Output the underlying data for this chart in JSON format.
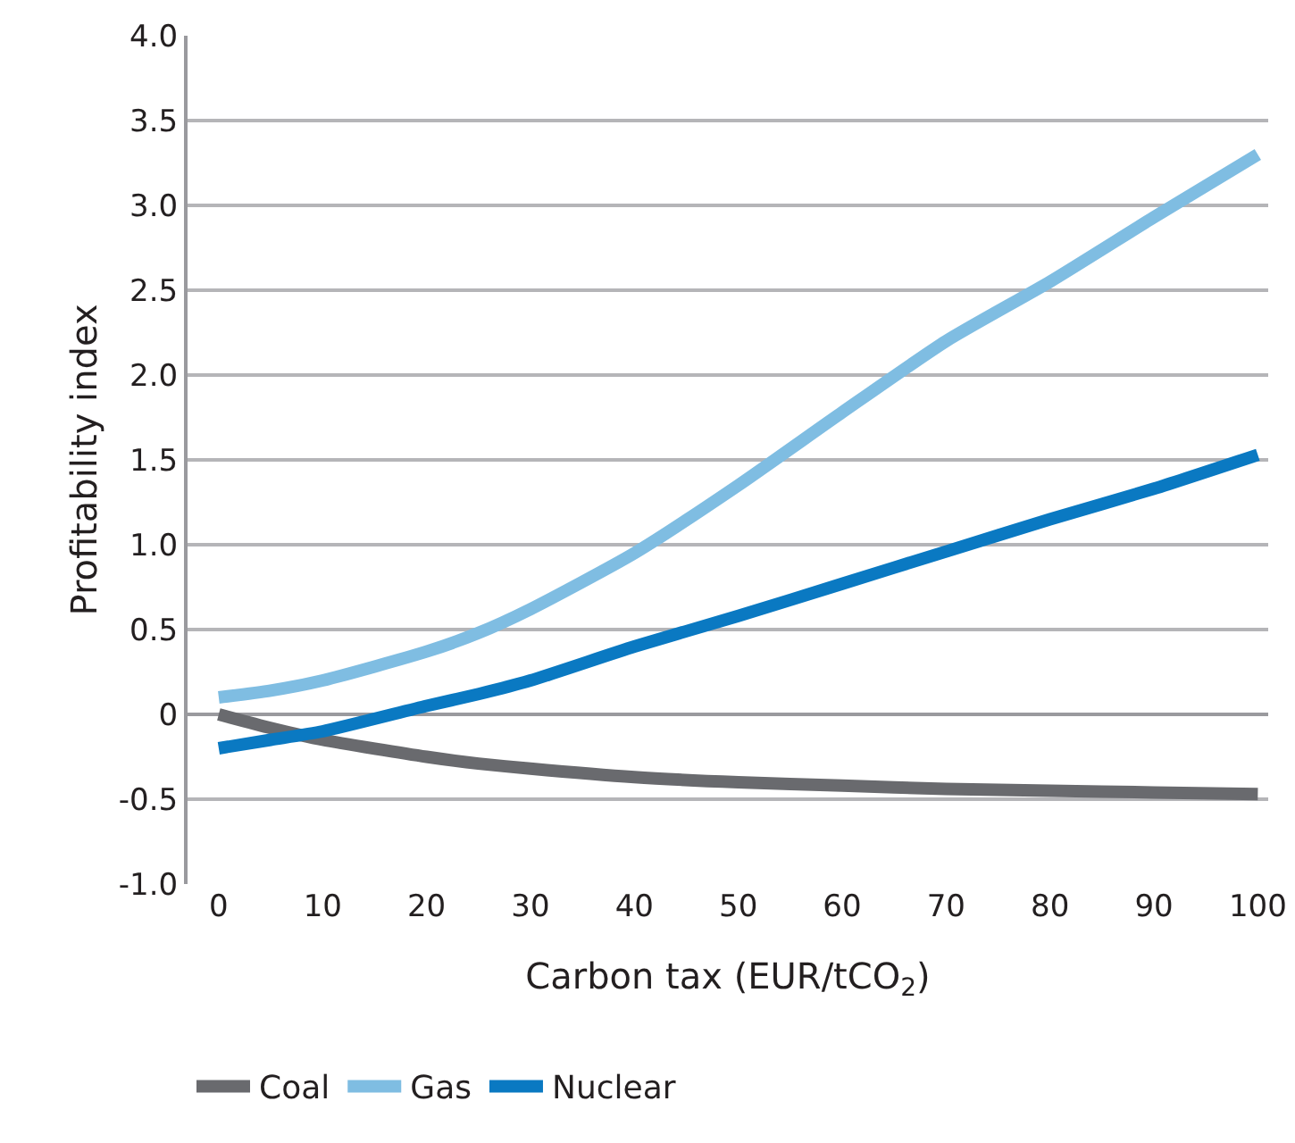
{
  "chart_data": {
    "type": "line",
    "xlabel": "Carbon tax (EUR/tCO$_{2}$)",
    "ylabel": "Profitability index",
    "x": [
      0,
      5,
      10,
      20,
      25,
      30,
      40,
      50,
      60,
      70,
      80,
      90,
      100
    ],
    "xlim": [
      -3,
      101
    ],
    "xticks": [
      0,
      10,
      20,
      30,
      40,
      50,
      60,
      70,
      80,
      90,
      100
    ],
    "ylim": [
      -1.0,
      4.0
    ],
    "yticks": [
      {
        "value": -1,
        "label": "-1.0"
      },
      -0.5,
      0,
      0.5,
      {
        "value": 1,
        "label": "1.0"
      },
      1.5,
      {
        "value": 2,
        "label": "2.0"
      },
      2.5,
      {
        "value": 3,
        "label": "3.0"
      },
      3.5,
      {
        "value": 4,
        "label": "4.0"
      }
    ],
    "grid": "y",
    "legend": "bottom",
    "marker": "none",
    "line_style": "solid",
    "series": [
      {
        "name": "Coal",
        "color": "#696a6e",
        "values": [
          0,
          -0.08,
          -0.15,
          -0.25,
          -0.29,
          -0.32,
          -0.37,
          -0.4,
          -0.42,
          -0.44,
          -0.45,
          -0.46,
          -0.47
        ]
      },
      {
        "name": "Gas",
        "color": "#7fbde2",
        "values": [
          0.1,
          0.14,
          0.2,
          0.37,
          0.48,
          0.62,
          0.95,
          1.35,
          1.78,
          2.2,
          2.55,
          2.93,
          3.3
        ]
      },
      {
        "name": "Nuclear",
        "color": "#0a79c2",
        "values": [
          -0.2,
          -0.15,
          -0.1,
          0.05,
          0.12,
          0.2,
          0.4,
          0.58,
          0.77,
          0.96,
          1.15,
          1.33,
          1.53
        ]
      }
    ]
  }
}
